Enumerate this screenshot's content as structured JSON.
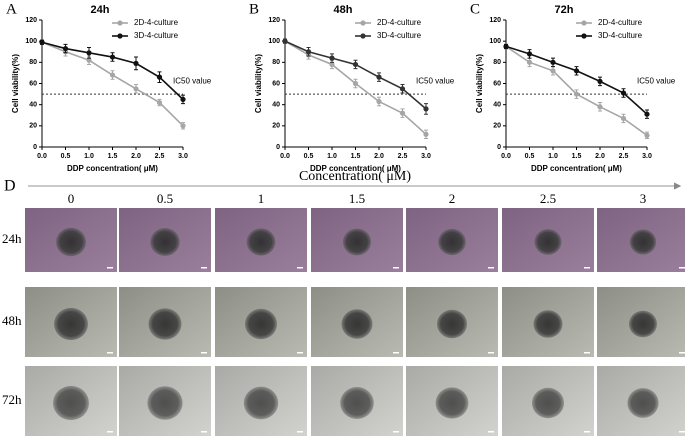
{
  "chart_data": [
    {
      "type": "line",
      "panel": "A",
      "title": "24h",
      "x": [
        0,
        0.5,
        1,
        1.5,
        2,
        2.5,
        3
      ],
      "series": [
        {
          "name": "2D-4-culture",
          "color": "#a6a6a6",
          "values": [
            99,
            90,
            82,
            68,
            55,
            42,
            20
          ],
          "errors": [
            2,
            4,
            4,
            4,
            4,
            3,
            3
          ]
        },
        {
          "name": "3D-4-culture",
          "color": "#111111",
          "values": [
            99,
            93,
            89,
            85,
            79,
            66,
            45
          ],
          "errors": [
            2,
            4,
            5,
            4,
            6,
            5,
            4
          ]
        }
      ],
      "xlim": [
        0,
        3
      ],
      "ylim": [
        0,
        120
      ],
      "xticks": [
        {
          "value": 0,
          "label": "0.0"
        },
        0.5,
        {
          "value": 1,
          "label": "1.0"
        },
        1.5,
        {
          "value": 2,
          "label": "2.0"
        },
        2.5,
        {
          "value": 3,
          "label": "3.0"
        }
      ],
      "yticks": [
        0,
        20,
        40,
        60,
        80,
        100,
        120
      ],
      "xlabel": "DDP concentration( μM)",
      "ylabel": "Cell viability(%)",
      "reference_line": {
        "value": 50,
        "label": "IC50 value"
      },
      "legend": "upper right"
    },
    {
      "type": "line",
      "panel": "B",
      "title": "48h",
      "x": [
        0,
        0.5,
        1,
        1.5,
        2,
        2.5,
        3
      ],
      "series": [
        {
          "name": "2D-4-culture",
          "color": "#a6a6a6",
          "values": [
            100,
            87,
            78,
            60,
            43,
            32,
            12
          ],
          "errors": [
            2,
            4,
            4,
            4,
            4,
            4,
            4
          ]
        },
        {
          "name": "3D-4-culture",
          "color": "#333333",
          "values": [
            100,
            90,
            84,
            78,
            66,
            55,
            36
          ],
          "errors": [
            2,
            4,
            4,
            4,
            4,
            4,
            5
          ]
        }
      ],
      "xlim": [
        0,
        3
      ],
      "ylim": [
        0,
        120
      ],
      "xticks": [
        {
          "value": 0,
          "label": "0.0"
        },
        0.5,
        {
          "value": 1,
          "label": "1.0"
        },
        1.5,
        {
          "value": 2,
          "label": "2.0"
        },
        2.5,
        {
          "value": 3,
          "label": "3.0"
        }
      ],
      "yticks": [
        0,
        20,
        40,
        60,
        80,
        100,
        120
      ],
      "xlabel": "DDP concentration( μM)",
      "ylabel": "Cell viability(%)",
      "reference_line": {
        "value": 50,
        "label": "IC50 value"
      },
      "legend": "upper right"
    },
    {
      "type": "line",
      "panel": "C",
      "title": "72h",
      "x": [
        0,
        0.5,
        1,
        1.5,
        2,
        2.5,
        3
      ],
      "series": [
        {
          "name": "2D-4-culture",
          "color": "#a6a6a6",
          "values": [
            95,
            80,
            72,
            50,
            38,
            27,
            11
          ],
          "errors": [
            2,
            4,
            4,
            4,
            4,
            4,
            3
          ]
        },
        {
          "name": "3D-4-culture",
          "color": "#111111",
          "values": [
            95,
            88,
            80,
            72,
            62,
            51,
            31
          ],
          "errors": [
            2,
            4,
            4,
            4,
            4,
            4,
            4
          ]
        }
      ],
      "xlim": [
        0,
        3
      ],
      "ylim": [
        0,
        120
      ],
      "xticks": [
        {
          "value": 0,
          "label": "0.0"
        },
        0.5,
        {
          "value": 1,
          "label": "1.0"
        },
        1.5,
        {
          "value": 2,
          "label": "2.0"
        },
        2.5,
        {
          "value": 3,
          "label": "3.0"
        }
      ],
      "yticks": [
        0,
        20,
        40,
        60,
        80,
        100,
        120
      ],
      "xlabel": "DDP concentration( μM)",
      "ylabel": "Cell viability(%)",
      "reference_line": {
        "value": 50,
        "label": "IC50 value"
      },
      "legend": "upper right"
    }
  ],
  "panel_d": {
    "label": "D",
    "axis_title": "Concentration( μM)",
    "concentrations": [
      "0",
      "0.5",
      "1",
      "1.5",
      "2",
      "2.5",
      "3"
    ],
    "rows": [
      "24h",
      "48h",
      "72h"
    ]
  }
}
